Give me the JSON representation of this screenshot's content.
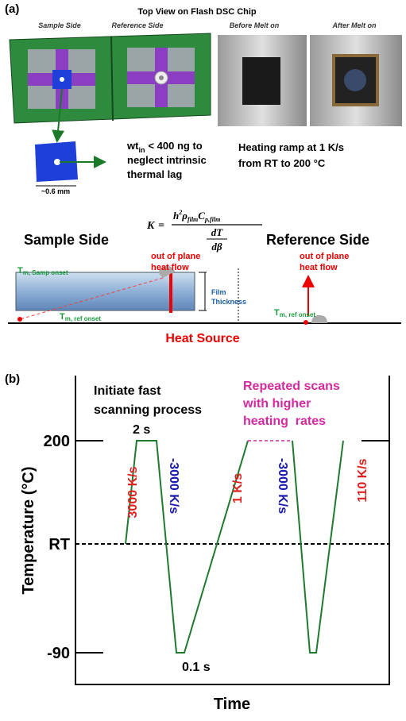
{
  "panel_a": {
    "label": "(a)",
    "title": "Top View on Flash DSC Chip",
    "image_labels": [
      "Sample Side",
      "Reference Side",
      "Before Melt on",
      "After Melt on"
    ],
    "scale": "~0.6 mm",
    "mass_note": {
      "main": "wt",
      "sub": "in",
      "lines": [
        "< 400 ng to",
        "neglect intrinsic",
        "thermal lag"
      ]
    },
    "ramp_note": [
      "Heating ramp at 1 K/s",
      "from RT to 200 °C"
    ],
    "formula": {
      "lhs": "K",
      "equals": "=",
      "numerator": [
        "h",
        "2",
        "ρ",
        "film",
        "C",
        "p,film"
      ],
      "denominator": [
        "dT",
        "dβ"
      ]
    },
    "sample_side": "Sample Side",
    "reference_side": "Reference Side",
    "heat_flow": [
      "out of plane",
      "heat flow"
    ],
    "film_thickness": [
      "Film",
      "Thickness"
    ],
    "samp_onset": {
      "main": "T",
      "sub": "m, Samp onset"
    },
    "ref_onset": {
      "main": "T",
      "sub": "m, ref onset"
    },
    "heat_source": "Heat Source"
  },
  "panel_b": {
    "label": "(b)",
    "y_axis_title": "Temperature (°C)",
    "x_axis_title": "Time",
    "ticks": [
      "200",
      "RT",
      "-90"
    ],
    "initiate": [
      "Initiate fast",
      "scanning process"
    ],
    "repeated": [
      "Repeated scans",
      "with higher",
      "heating  rates"
    ],
    "hold_top": "2 s",
    "hold_bottom": "0.1 s",
    "rates": [
      "3000 K/s",
      "-3000 K/s",
      "1 K/s",
      "-3000 K/s",
      "110 K/s"
    ]
  }
}
